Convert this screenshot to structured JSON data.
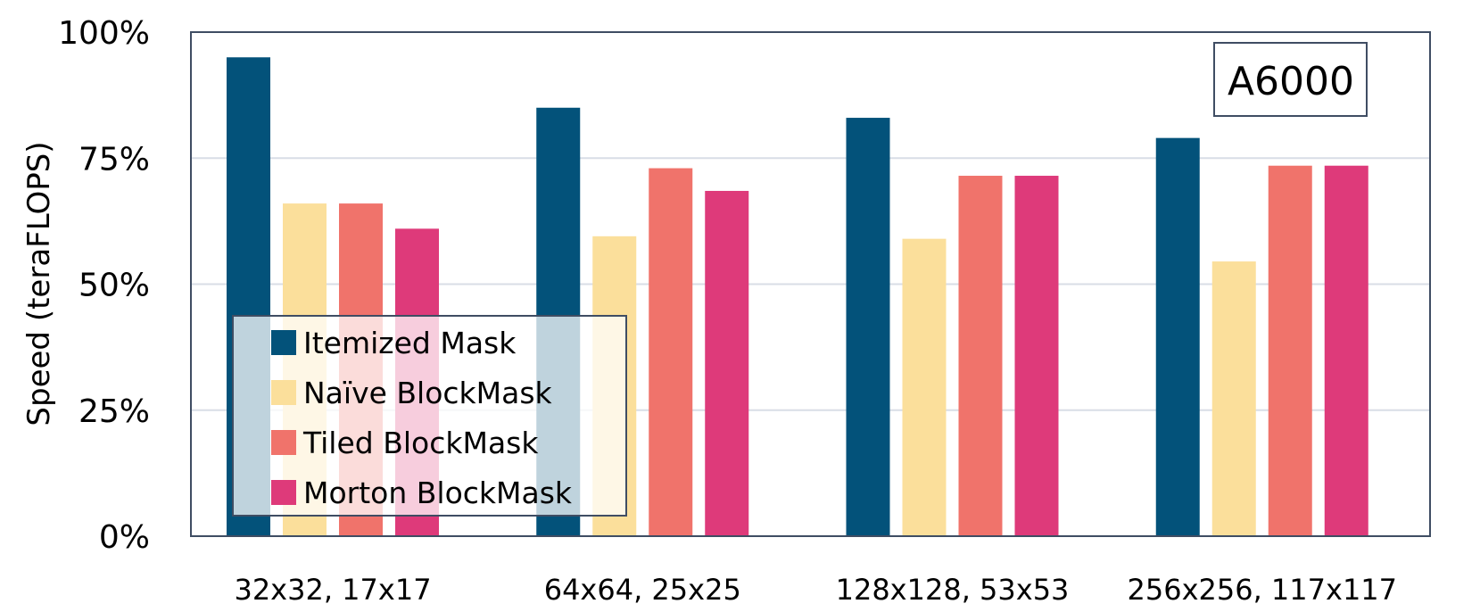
{
  "chart_data": {
    "type": "bar",
    "title": "",
    "annotation": "A6000",
    "ylabel": "Speed (teraFLOPS)",
    "xlabel": "",
    "ylim": [
      0,
      100
    ],
    "yticks": [
      "0%",
      "25%",
      "50%",
      "75%",
      "100%"
    ],
    "ytick_values": [
      0,
      25,
      50,
      75,
      100
    ],
    "grid": true,
    "legend_position": "bottom-left",
    "categories": [
      "32x32, 17x17",
      "64x64, 25x25",
      "128x128, 53x53",
      "256x256, 117x117"
    ],
    "series": [
      {
        "name": "Itemized Mask",
        "color": "#03527a",
        "values": [
          95,
          85,
          83,
          79
        ]
      },
      {
        "name": "Naïve BlockMask",
        "color": "#fbdf9b",
        "values": [
          66,
          59.5,
          59,
          54.5
        ]
      },
      {
        "name": "Tiled BlockMask",
        "color": "#f0736b",
        "values": [
          66,
          73,
          71.5,
          73.5
        ]
      },
      {
        "name": "Morton BlockMask",
        "color": "#de3a7a",
        "values": [
          61,
          68.5,
          71.5,
          73.5
        ]
      }
    ]
  }
}
